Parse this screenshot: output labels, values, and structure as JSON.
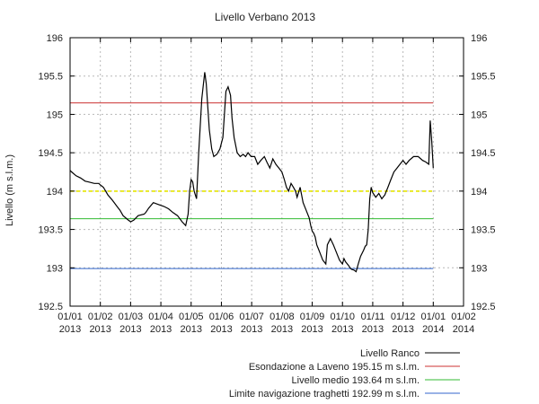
{
  "chart_data": {
    "type": "line",
    "title": "Livello Verbano 2013",
    "xlabel": "",
    "ylabel": "Livello (m s.l.m.)",
    "ylim": [
      192.5,
      196
    ],
    "y_ticks": [
      192.5,
      193,
      193.5,
      194,
      194.5,
      195,
      195.5,
      196
    ],
    "y_tick_labels": [
      "192.5",
      "193",
      "193.5",
      "194",
      "194.5",
      "195",
      "195.5",
      "196"
    ],
    "x_ticks": [
      {
        "month": 0,
        "line1": "01/01",
        "line2": "2013"
      },
      {
        "month": 1,
        "line1": "01/02",
        "line2": "2013"
      },
      {
        "month": 2,
        "line1": "01/03",
        "line2": "2013"
      },
      {
        "month": 3,
        "line1": "01/04",
        "line2": "2013"
      },
      {
        "month": 4,
        "line1": "01/05",
        "line2": "2013"
      },
      {
        "month": 5,
        "line1": "01/06",
        "line2": "2013"
      },
      {
        "month": 6,
        "line1": "01/07",
        "line2": "2013"
      },
      {
        "month": 7,
        "line1": "01/08",
        "line2": "2013"
      },
      {
        "month": 8,
        "line1": "01/09",
        "line2": "2013"
      },
      {
        "month": 9,
        "line1": "01/10",
        "line2": "2013"
      },
      {
        "month": 10,
        "line1": "01/11",
        "line2": "2013"
      },
      {
        "month": 11,
        "line1": "01/12",
        "line2": "2013"
      },
      {
        "month": 12,
        "line1": "01/01",
        "line2": "2014"
      },
      {
        "month": 13,
        "line1": "01/02",
        "line2": "2014"
      }
    ],
    "xlim_months": [
      0,
      13
    ],
    "grid": true,
    "legend_position": "bottom-right",
    "series": [
      {
        "name": "Livello Ranco",
        "color": "#000000",
        "style": "solid",
        "x_months": [
          0,
          0.05,
          0.2,
          0.35,
          0.5,
          0.6,
          0.8,
          0.95,
          1.0,
          1.1,
          1.25,
          1.4,
          1.55,
          1.65,
          1.75,
          1.9,
          2.0,
          2.1,
          2.25,
          2.45,
          2.5,
          2.6,
          2.75,
          2.95,
          3.1,
          3.25,
          3.4,
          3.55,
          3.7,
          3.82,
          3.9,
          3.95,
          4.0,
          4.05,
          4.1,
          4.18,
          4.25,
          4.35,
          4.45,
          4.5,
          4.55,
          4.6,
          4.68,
          4.75,
          4.85,
          4.95,
          5.05,
          5.15,
          5.22,
          5.3,
          5.35,
          5.42,
          5.52,
          5.62,
          5.72,
          5.8,
          5.88,
          5.98,
          6.1,
          6.2,
          6.3,
          6.42,
          6.5,
          6.6,
          6.7,
          6.8,
          6.9,
          7.0,
          7.08,
          7.15,
          7.22,
          7.3,
          7.38,
          7.45,
          7.5,
          7.6,
          7.7,
          7.8,
          7.9,
          7.95,
          8.0,
          8.05,
          8.1,
          8.15,
          8.2,
          8.25,
          8.35,
          8.45,
          8.5,
          8.6,
          8.7,
          8.8,
          8.9,
          9.0,
          9.05,
          9.1,
          9.2,
          9.25,
          9.3,
          9.38,
          9.45,
          9.52,
          9.6,
          9.7,
          9.75,
          9.8,
          9.85,
          9.9,
          9.95,
          10.0,
          10.1,
          10.2,
          10.3,
          10.4,
          10.5,
          10.6,
          10.7,
          10.8,
          10.9,
          11.0,
          11.1,
          11.2,
          11.35,
          11.5,
          11.65,
          11.75,
          11.85,
          11.9,
          11.95,
          12.0
        ],
        "values": [
          194.27,
          194.25,
          194.2,
          194.17,
          194.13,
          194.12,
          194.1,
          194.1,
          194.08,
          194.05,
          193.95,
          193.88,
          193.8,
          193.75,
          193.68,
          193.63,
          193.6,
          193.62,
          193.68,
          193.7,
          193.72,
          193.78,
          193.85,
          193.82,
          193.8,
          193.77,
          193.72,
          193.68,
          193.6,
          193.55,
          193.7,
          194.0,
          194.15,
          194.12,
          194.0,
          193.9,
          194.5,
          195.2,
          195.55,
          195.4,
          195.1,
          194.8,
          194.55,
          194.45,
          194.48,
          194.55,
          194.7,
          195.3,
          195.36,
          195.25,
          194.95,
          194.7,
          194.5,
          194.45,
          194.48,
          194.45,
          194.5,
          194.45,
          194.45,
          194.35,
          194.4,
          194.45,
          194.38,
          194.3,
          194.42,
          194.35,
          194.3,
          194.25,
          194.15,
          194.05,
          194.0,
          194.1,
          194.05,
          194.0,
          193.92,
          194.05,
          193.85,
          193.75,
          193.65,
          193.55,
          193.48,
          193.45,
          193.4,
          193.3,
          193.25,
          193.2,
          193.1,
          193.05,
          193.3,
          193.38,
          193.3,
          193.2,
          193.1,
          193.05,
          193.12,
          193.08,
          193.03,
          193.0,
          192.98,
          192.97,
          192.95,
          193.05,
          193.15,
          193.23,
          193.28,
          193.3,
          193.5,
          193.9,
          194.05,
          193.98,
          193.92,
          193.97,
          193.9,
          193.95,
          194.05,
          194.15,
          194.25,
          194.3,
          194.35,
          194.4,
          194.35,
          194.4,
          194.45,
          194.45,
          194.4,
          194.38,
          194.35,
          194.92,
          194.65,
          194.3
        ]
      },
      {
        "name": "Esondazione a Laveno 195.15 m s.l.m.",
        "color": "#cc3333",
        "style": "solid",
        "x_months": [
          0,
          12
        ],
        "values": [
          195.15,
          195.15
        ]
      },
      {
        "name": "Livello medio 193.64 m s.l.m.",
        "color": "#33bb33",
        "style": "solid",
        "x_months": [
          0,
          12
        ],
        "values": [
          193.64,
          193.64
        ]
      },
      {
        "name": "Limite navigazione traghetti 192.99 m s.l.m.",
        "color": "#3366cc",
        "style": "solid",
        "x_months": [
          0,
          12
        ],
        "values": [
          192.99,
          192.99
        ]
      },
      {
        "name": "",
        "color": "#e6e600",
        "style": "dashed",
        "x_months": [
          0,
          12
        ],
        "values": [
          194.0,
          194.0
        ]
      }
    ]
  }
}
